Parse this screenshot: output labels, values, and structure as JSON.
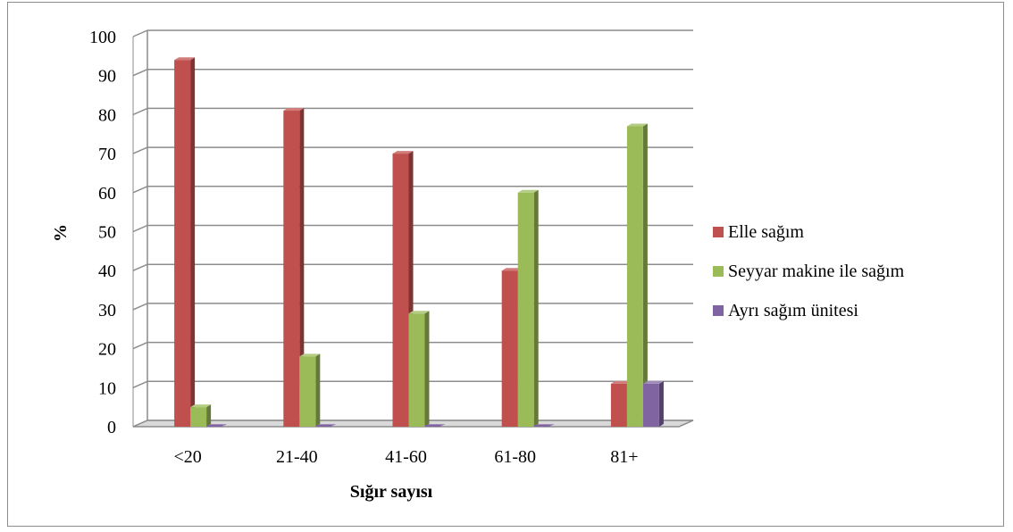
{
  "chart_data": {
    "type": "bar",
    "title": "",
    "xlabel": "Sığır sayısı",
    "ylabel": "%",
    "ylim": [
      0,
      100
    ],
    "yticks": [
      0,
      10,
      20,
      30,
      40,
      50,
      60,
      70,
      80,
      90,
      100
    ],
    "grid": true,
    "legend_position": "right",
    "categories": [
      "<20",
      "21-40",
      "41-60",
      "61-80",
      "81+"
    ],
    "series": [
      {
        "name": "Elle sağım",
        "color": "#c0504d",
        "values": [
          94,
          81,
          70,
          40,
          11
        ]
      },
      {
        "name": "Seyyar makine ile sağım",
        "color": "#9bbb59",
        "values": [
          5,
          18,
          29,
          60,
          77
        ]
      },
      {
        "name": "Ayrı sağım ünitesi",
        "color": "#8064a2",
        "values": [
          0,
          0,
          0,
          0,
          11
        ]
      }
    ]
  }
}
